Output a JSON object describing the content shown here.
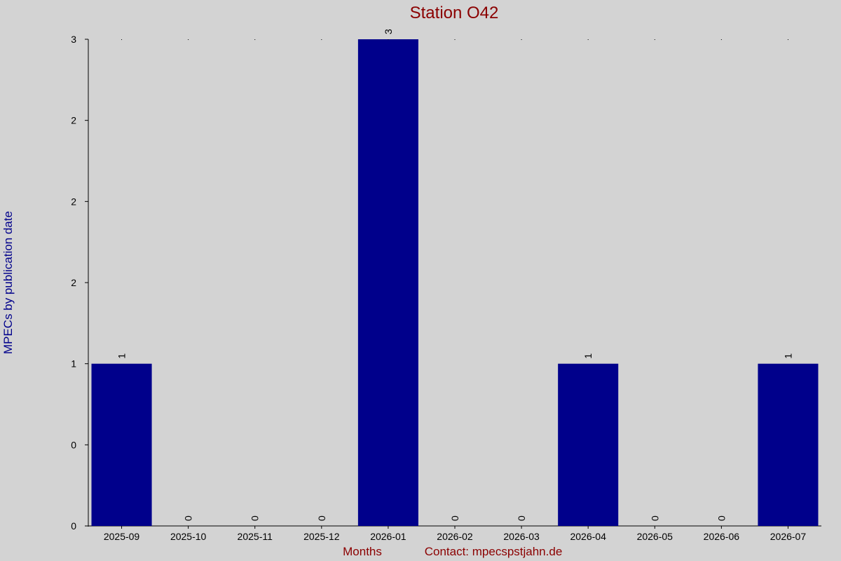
{
  "chart_data": {
    "type": "bar",
    "title": "Station O42",
    "ylabel": "MPECs by publication date",
    "xlabel": "Months",
    "contact": "Contact: mpecsрstjahn.de",
    "categories": [
      "2025-09",
      "2025-10",
      "2025-11",
      "2025-12",
      "2026-01",
      "2026-02",
      "2026-03",
      "2026-04",
      "2026-05",
      "2026-06",
      "2026-07"
    ],
    "values": [
      1,
      0,
      0,
      0,
      3,
      0,
      0,
      1,
      0,
      0,
      1
    ],
    "value_labels": [
      "1",
      "0",
      "0",
      "0",
      "3",
      "0",
      "0",
      "1",
      "0",
      "0",
      "1"
    ],
    "ylim": [
      0,
      3
    ],
    "yticks": [
      0,
      0.5,
      1,
      1.5,
      2,
      2.5,
      3
    ],
    "ytick_labels": [
      "0",
      "0",
      "1",
      "2",
      "2",
      "2",
      "3"
    ],
    "bar_color": "#00008b",
    "title_color": "#8b0000",
    "ylabel_color": "#00008b",
    "xlabel_color": "#8b0000",
    "background": "#d3d3d3",
    "grid": false
  }
}
